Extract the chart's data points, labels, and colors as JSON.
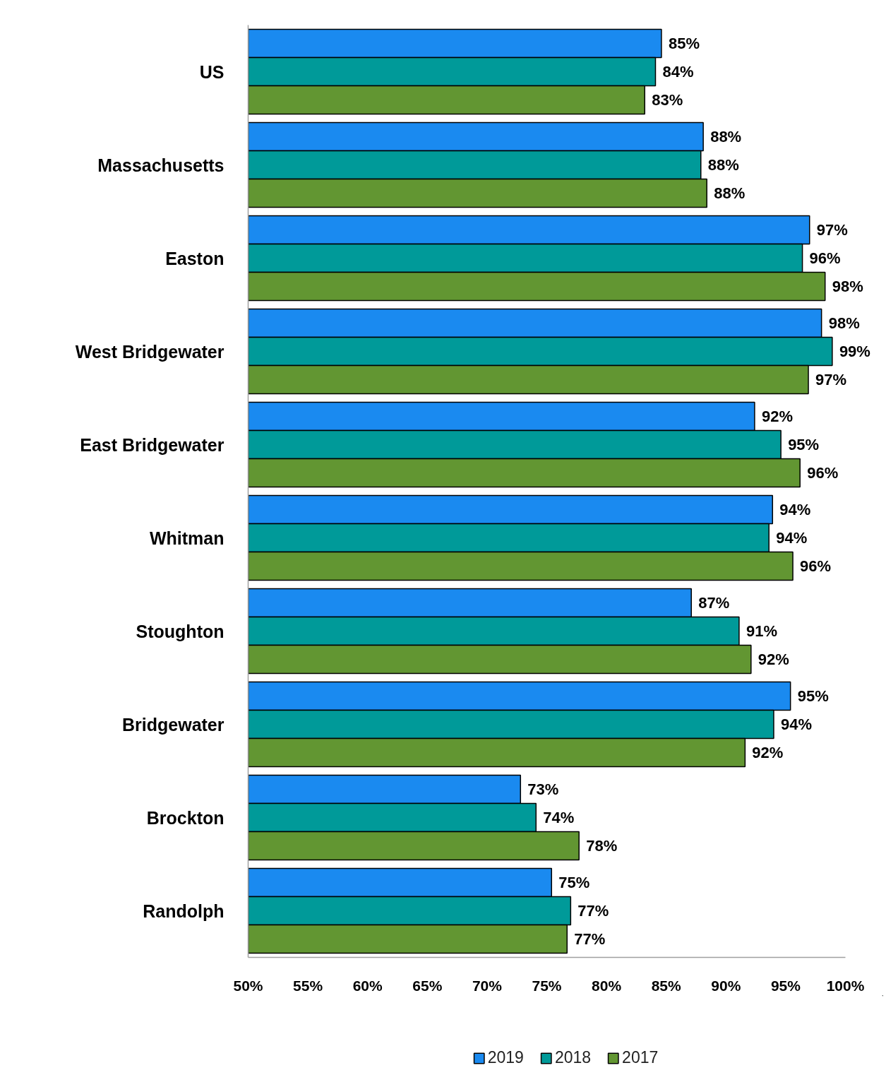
{
  "chart_data": {
    "type": "bar",
    "orientation": "horizontal",
    "categories": [
      "US",
      "Massachusetts",
      "Easton",
      "West Bridgewater",
      "East Bridgewater",
      "Whitman",
      "Stoughton",
      "Bridgewater",
      "Brockton",
      "Randolph"
    ],
    "series": [
      {
        "name": "2019",
        "color": "#1a8af0",
        "values": [
          84.6,
          88.1,
          97.0,
          98.0,
          92.4,
          93.9,
          87.1,
          95.4,
          72.8,
          75.4
        ],
        "value_labels": [
          "85%",
          "88%",
          "97%",
          "98%",
          "92%",
          "94%",
          "87%",
          "95%",
          "73%",
          "75%"
        ]
      },
      {
        "name": "2018",
        "color": "#009a99",
        "values": [
          84.1,
          87.9,
          96.4,
          98.9,
          94.6,
          93.6,
          91.1,
          94.0,
          74.1,
          77.0
        ],
        "value_labels": [
          "84%",
          "88%",
          "96%",
          "99%",
          "95%",
          "94%",
          "91%",
          "94%",
          "74%",
          "77%"
        ]
      },
      {
        "name": "2017",
        "color": "#629632",
        "values": [
          83.2,
          88.4,
          98.3,
          96.9,
          96.2,
          95.6,
          92.1,
          91.6,
          77.7,
          76.7
        ],
        "value_labels": [
          "83%",
          "88%",
          "98%",
          "97%",
          "96%",
          "96%",
          "92%",
          "92%",
          "78%",
          "77%"
        ]
      }
    ],
    "xlim": [
      50,
      100
    ],
    "xticks": [
      {
        "value": 50,
        "label": "50%"
      },
      {
        "value": 55,
        "label": "55%"
      },
      {
        "value": 60,
        "label": "60%"
      },
      {
        "value": 65,
        "label": "65%"
      },
      {
        "value": 70,
        "label": "70%"
      },
      {
        "value": 75,
        "label": "75%"
      },
      {
        "value": 80,
        "label": "80%"
      },
      {
        "value": 85,
        "label": "85%"
      },
      {
        "value": 90,
        "label": "90%"
      },
      {
        "value": 95,
        "label": "95%"
      },
      {
        "value": 100,
        "label": "100%"
      }
    ],
    "legend": "bottom",
    "grid": false
  }
}
